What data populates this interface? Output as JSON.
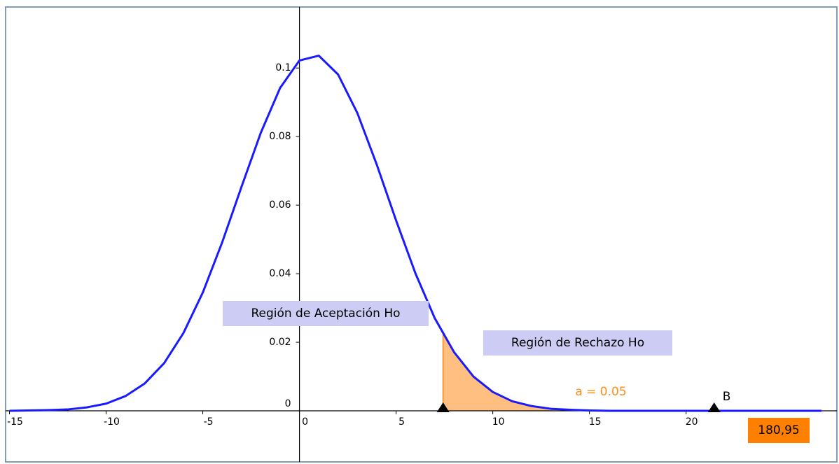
{
  "chart_data": {
    "type": "line",
    "x": [
      -15,
      -14,
      -13,
      -12,
      -11,
      -10,
      -9,
      -8,
      -7,
      -6,
      -5,
      -4,
      -3,
      -2,
      -1,
      0,
      1,
      2,
      3,
      4,
      5,
      6,
      7,
      8,
      9,
      10,
      11,
      12,
      13,
      14,
      15,
      16,
      17,
      18,
      19,
      20,
      21,
      22,
      23,
      24,
      25,
      26,
      27
    ],
    "values": [
      0.0,
      0.0001,
      0.0002,
      0.0004,
      0.001,
      0.0021,
      0.0043,
      0.008,
      0.0139,
      0.0227,
      0.0345,
      0.0491,
      0.0653,
      0.0811,
      0.0942,
      0.1022,
      0.1036,
      0.0981,
      0.0868,
      0.0718,
      0.0555,
      0.0401,
      0.027,
      0.0171,
      0.01,
      0.0055,
      0.0028,
      0.0014,
      0.0006,
      0.0003,
      0.0001,
      0,
      0,
      0,
      0,
      0,
      0,
      0,
      0,
      0,
      0,
      0,
      0
    ],
    "color": "#1a1aff",
    "shade_color": "#ffbf80",
    "xlim": [
      -15.2,
      27.8
    ],
    "ylim": [
      -0.0149,
      0.1178
    ],
    "xticks": [
      -15,
      -10,
      -5,
      0,
      5,
      10,
      15,
      20
    ],
    "yticks": [
      0,
      0.02,
      0.04,
      0.06,
      0.08,
      0.1
    ],
    "points": [
      {
        "x": 7.43
      },
      {
        "x": 21.45,
        "label": "B"
      }
    ],
    "annotations": {
      "acceptance": "Región de Aceptación Ho",
      "rejection": "Región de Rechazo Ho",
      "alpha": "a = 0.05",
      "value_box": "180,95"
    }
  }
}
